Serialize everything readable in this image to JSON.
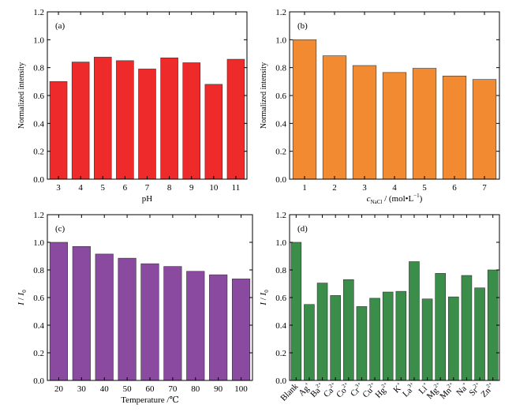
{
  "chart_data": [
    {
      "type": "bar",
      "panel_label": "(a)",
      "xlabel": "pH",
      "ylabel": "Normalized intensity",
      "ylim": [
        0,
        1.2
      ],
      "yticks": [
        "0.0",
        "0.2",
        "0.4",
        "0.6",
        "0.8",
        "1.0",
        "1.2"
      ],
      "bar_color": "#ee2a2a",
      "categories": [
        "3",
        "4",
        "5",
        "6",
        "7",
        "8",
        "9",
        "10",
        "11"
      ],
      "values": [
        0.7,
        0.84,
        0.875,
        0.85,
        0.79,
        0.87,
        0.835,
        0.68,
        0.86
      ]
    },
    {
      "type": "bar",
      "panel_label": "(b)",
      "xlabel_parts": {
        "pre": "c",
        "sub": "NaCl",
        "post": " / (mol•L",
        "sup": "−1",
        "end": ")"
      },
      "ylabel": "Normalized intensity",
      "ylim": [
        0,
        1.2
      ],
      "yticks": [
        "0.0",
        "0.2",
        "0.4",
        "0.6",
        "0.8",
        "1.0",
        "1.2"
      ],
      "bar_color": "#f28a32",
      "categories": [
        "1",
        "2",
        "3",
        "4",
        "5",
        "6",
        "7"
      ],
      "values": [
        1.0,
        0.885,
        0.815,
        0.765,
        0.795,
        0.74,
        0.715
      ]
    },
    {
      "type": "bar",
      "panel_label": "(c)",
      "xlabel": "Temperature /℃",
      "ylabel_parts": {
        "a": "I",
        "mid": " / ",
        "b": "I",
        "sub": "0"
      },
      "ylim": [
        0,
        1.2
      ],
      "yticks": [
        "0.0",
        "0.2",
        "0.4",
        "0.6",
        "0.8",
        "1.0",
        "1.2"
      ],
      "bar_color": "#8a4aa0",
      "categories": [
        "20",
        "30",
        "40",
        "50",
        "60",
        "70",
        "80",
        "90",
        "100"
      ],
      "values": [
        1.0,
        0.97,
        0.915,
        0.885,
        0.845,
        0.825,
        0.79,
        0.765,
        0.735
      ]
    },
    {
      "type": "bar",
      "panel_label": "(d)",
      "ylabel_parts": {
        "a": "I",
        "mid": " / ",
        "b": "I",
        "sub": "0"
      },
      "ylim": [
        0,
        1.2
      ],
      "yticks": [
        "0.0",
        "0.2",
        "0.4",
        "0.6",
        "0.8",
        "1.0",
        "1.2"
      ],
      "bar_color": "#3a8e4a",
      "category_labels": [
        {
          "base": "Blank",
          "sup": ""
        },
        {
          "base": "Ag",
          "sup": "+"
        },
        {
          "base": "Ba",
          "sup": "2+"
        },
        {
          "base": "Ca",
          "sup": "2+"
        },
        {
          "base": "Co",
          "sup": "2+"
        },
        {
          "base": "Cr",
          "sup": "3+"
        },
        {
          "base": "Cu",
          "sup": "2+"
        },
        {
          "base": "Hg",
          "sup": "2+"
        },
        {
          "base": "K",
          "sup": "+"
        },
        {
          "base": "La",
          "sup": "3+"
        },
        {
          "base": "Li",
          "sup": "+"
        },
        {
          "base": "Mg",
          "sup": "2+"
        },
        {
          "base": "Mn",
          "sup": "2+"
        },
        {
          "base": "Na",
          "sup": "+"
        },
        {
          "base": "Sr",
          "sup": "2+"
        },
        {
          "base": "Zn",
          "sup": "2+"
        }
      ],
      "values": [
        1.0,
        0.55,
        0.705,
        0.615,
        0.73,
        0.535,
        0.595,
        0.64,
        0.645,
        0.86,
        0.59,
        0.775,
        0.605,
        0.76,
        0.67,
        0.8
      ]
    }
  ]
}
